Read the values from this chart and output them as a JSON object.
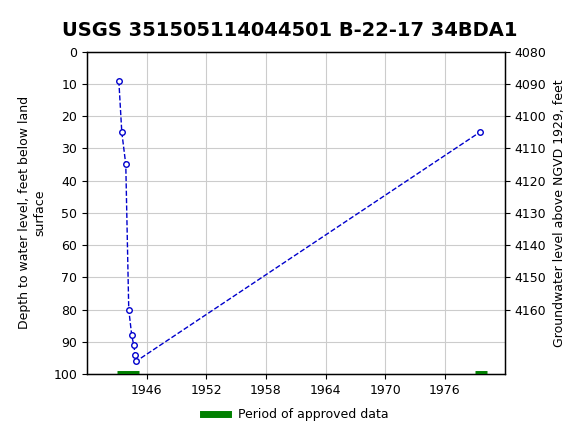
{
  "title": "USGS 351505114044501 B-22-17 34BDA1",
  "ylabel_left": "Depth to water level, feet below land\nsurface",
  "ylabel_right": "Groundwater level above NGVD 1929, feet",
  "xlabel": "",
  "ylim_left": [
    0,
    100
  ],
  "ylim_right": [
    4080,
    4180
  ],
  "xlim": [
    1940,
    1982
  ],
  "xticks": [
    1946,
    1952,
    1958,
    1964,
    1970,
    1976
  ],
  "yticks_left": [
    0,
    10,
    20,
    30,
    40,
    50,
    60,
    70,
    80,
    90,
    100
  ],
  "yticks_right": [
    4080,
    4090,
    4100,
    4110,
    4120,
    4130,
    4140,
    4150,
    4160
  ],
  "data_x": [
    1943.2,
    1943.5,
    1943.9,
    1944.2,
    1944.5,
    1944.7,
    1944.85,
    1944.95,
    1979.5
  ],
  "data_y": [
    9,
    25,
    35,
    80,
    88,
    91,
    94,
    96,
    25
  ],
  "line_color": "#0000cc",
  "marker_color": "#0000cc",
  "marker_face": "white",
  "line_style": "--",
  "marker_style": "o",
  "marker_size": 4,
  "legend_label": "Period of approved data",
  "legend_color": "#008000",
  "background_color": "#ffffff",
  "header_color": "#006633",
  "grid_color": "#cccccc",
  "bar_y_left": 100,
  "bar_x_left_start": 1943.0,
  "bar_x_left_end": 1945.2,
  "bar_x_right_start": 1979.0,
  "bar_x_right_end": 1980.2,
  "bar_color": "#008000",
  "title_fontsize": 14,
  "axis_label_fontsize": 9,
  "tick_fontsize": 9
}
